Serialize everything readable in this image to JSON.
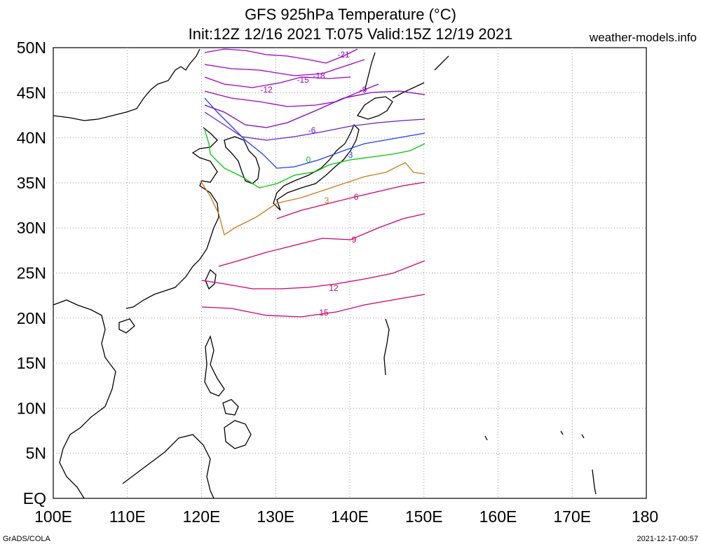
{
  "title": {
    "line1": "GFS 925hPa Temperature (°C)",
    "line2": "Init:12Z 12/16 2021 T:075 Valid:15Z 12/19 2021"
  },
  "site": "weather-models.info",
  "footer": {
    "left": "GrADS/COLA",
    "right": "2021-12-17-00:57"
  },
  "axes": {
    "lat_labels": [
      "50N",
      "45N",
      "40N",
      "35N",
      "30N",
      "25N",
      "20N",
      "15N",
      "10N",
      "5N",
      "EQ"
    ],
    "lon_labels": [
      "100E",
      "110E",
      "120E",
      "130E",
      "140E",
      "150E",
      "160E",
      "170E",
      "180"
    ],
    "lon_range": [
      100,
      180
    ],
    "lat_range": [
      0,
      50
    ],
    "grid": "dotted"
  },
  "contours": [
    {
      "level": -21,
      "label": "-21",
      "color": "#a000c8"
    },
    {
      "level": -18,
      "label": "-18",
      "color": "#a000c8"
    },
    {
      "level": -15,
      "label": "-15",
      "color": "#a000c8"
    },
    {
      "level": -12,
      "label": "-12",
      "color": "#a000c8"
    },
    {
      "level": -9,
      "label": "-9",
      "color": "#8000c0"
    },
    {
      "level": -6,
      "label": "-6",
      "color": "#6a20c8"
    },
    {
      "level": -3,
      "label": "-3",
      "color": "#1e3cff"
    },
    {
      "level": 0,
      "label": "0",
      "color": "#00c800"
    },
    {
      "level": 3,
      "label": "3",
      "color": "#d27814"
    },
    {
      "level": 6,
      "label": "6",
      "color": "#d2006e"
    },
    {
      "level": 9,
      "label": "9",
      "color": "#d2006e"
    },
    {
      "level": 12,
      "label": "12",
      "color": "#d2006e"
    },
    {
      "level": 15,
      "label": "15",
      "color": "#d2006e"
    }
  ]
}
